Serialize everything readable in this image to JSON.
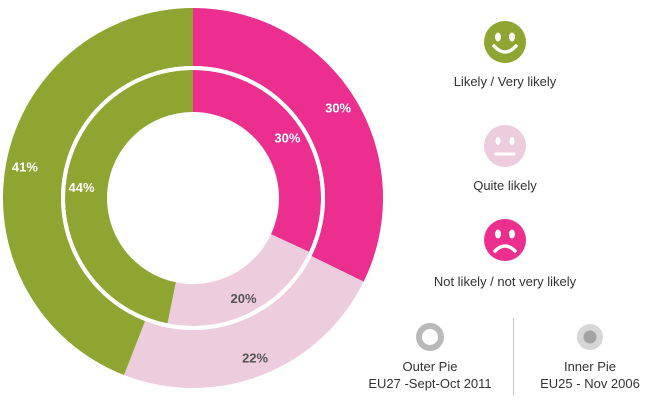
{
  "chart_data": {
    "type": "pie",
    "variant": "nested-donut",
    "categories": [
      "Likely / Very likely",
      "Quite likely",
      "Not likely / not very likely"
    ],
    "colors": [
      "#8fa531",
      "#ecccdd",
      "#ec2e8f"
    ],
    "series": [
      {
        "name": "Outer Pie",
        "values": [
          41,
          22,
          30
        ],
        "labels": [
          "41%",
          "22%",
          "30%"
        ]
      },
      {
        "name": "Inner Pie",
        "values": [
          44,
          20,
          30
        ],
        "labels": [
          "44%",
          "20%",
          "30%"
        ]
      }
    ]
  },
  "legend": [
    {
      "label": "Likely / Very likely",
      "face": "smile",
      "color": "#8fa531"
    },
    {
      "label": "Quite likely",
      "face": "neutral",
      "color": "#ecccdd"
    },
    {
      "label": "Not likely / not very likely",
      "face": "sad",
      "color": "#ec2e8f"
    }
  ],
  "pie_key": {
    "outer": {
      "title": "Outer Pie",
      "subtitle": "EU27 -Sept-Oct 2011"
    },
    "inner": {
      "title": "Inner Pie",
      "subtitle": "EU25 - Nov 2006"
    }
  }
}
